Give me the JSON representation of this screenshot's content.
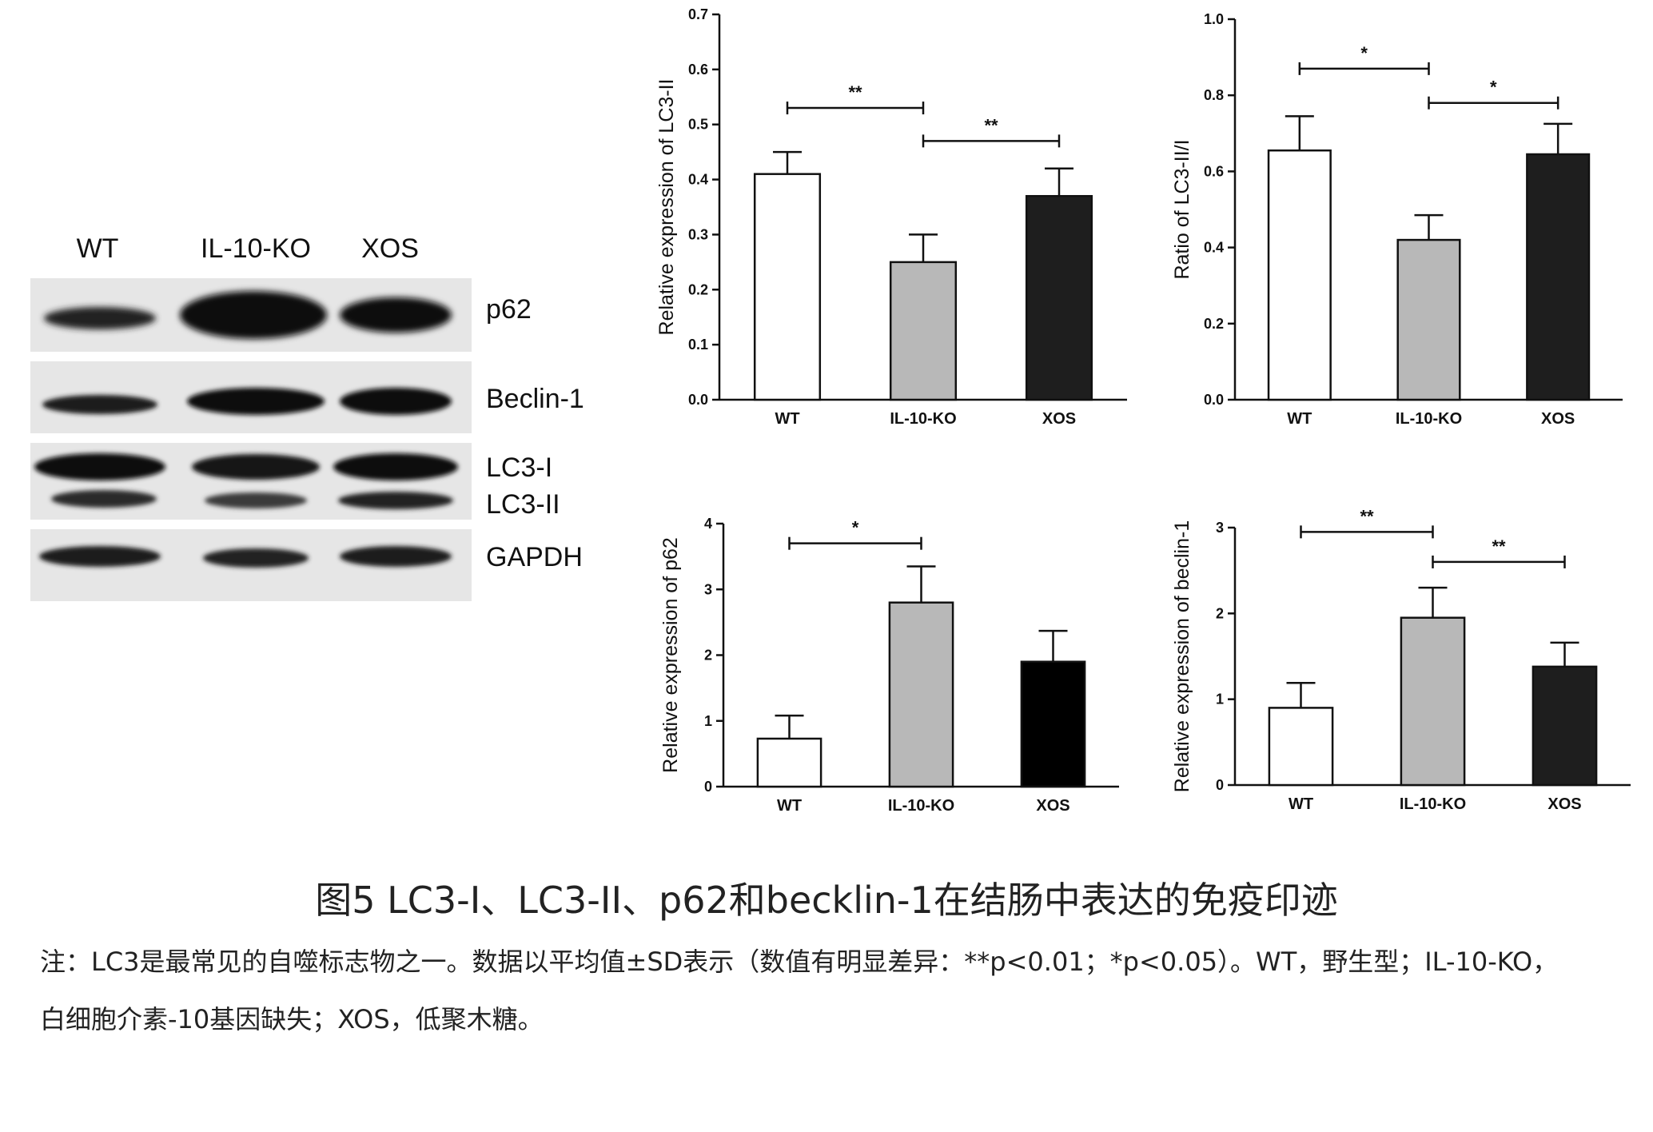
{
  "blot": {
    "lanes": [
      "WT",
      "IL-10-KO",
      "XOS"
    ],
    "bands": [
      "p62",
      "Beclin-1",
      "LC3-I",
      "LC3-II",
      "GAPDH"
    ]
  },
  "colors": {
    "wt": "#ffffff",
    "ko": "#b8b8b8",
    "xos": "#1e1e1e",
    "xos_dark": "#000000",
    "axis": "#111111"
  },
  "chart_data": [
    {
      "id": "lc3ii",
      "type": "bar",
      "categories": [
        "WT",
        "IL-10-KO",
        "XOS"
      ],
      "values": [
        0.41,
        0.25,
        0.37
      ],
      "errors": [
        0.04,
        0.05,
        0.05
      ],
      "ylabel": "Relative expression of LC3-II",
      "ylim": [
        0,
        0.7
      ],
      "yticks": [
        "0.0",
        "0.1",
        "0.2",
        "0.3",
        "0.4",
        "0.5",
        "0.6",
        "0.7"
      ],
      "tick_values": [
        0,
        0.1,
        0.2,
        0.3,
        0.4,
        0.5,
        0.6,
        0.7
      ],
      "fills": [
        "#ffffff",
        "#b8b8b8",
        "#1e1e1e"
      ],
      "significance": [
        {
          "from": 0,
          "to": 1,
          "y": 0.53,
          "label": "**"
        },
        {
          "from": 1,
          "to": 2,
          "y": 0.47,
          "label": "**"
        }
      ]
    },
    {
      "id": "ratio",
      "type": "bar",
      "categories": [
        "WT",
        "IL-10-KO",
        "XOS"
      ],
      "values": [
        0.655,
        0.42,
        0.645
      ],
      "errors": [
        0.09,
        0.065,
        0.08
      ],
      "ylabel": "Ratio of LC3-II/I",
      "ylim": [
        0,
        1.0
      ],
      "yticks": [
        "0.0",
        "0.2",
        "0.4",
        "0.6",
        "0.8",
        "1.0"
      ],
      "tick_values": [
        0,
        0.2,
        0.4,
        0.6,
        0.8,
        1.0
      ],
      "fills": [
        "#ffffff",
        "#b8b8b8",
        "#1e1e1e"
      ],
      "significance": [
        {
          "from": 0,
          "to": 1,
          "y": 0.87,
          "label": "*"
        },
        {
          "from": 1,
          "to": 2,
          "y": 0.78,
          "label": "*"
        }
      ]
    },
    {
      "id": "p62",
      "type": "bar",
      "categories": [
        "WT",
        "IL-10-KO",
        "XOS"
      ],
      "values": [
        0.73,
        2.8,
        1.9
      ],
      "errors": [
        0.35,
        0.55,
        0.47
      ],
      "ylabel": "Relative expression of p62",
      "ylim": [
        0,
        4
      ],
      "yticks": [
        "0",
        "1",
        "2",
        "3",
        "4"
      ],
      "tick_values": [
        0,
        1,
        2,
        3,
        4
      ],
      "fills": [
        "#ffffff",
        "#b8b8b8",
        "#000000"
      ],
      "significance": [
        {
          "from": 0,
          "to": 1,
          "y": 3.7,
          "label": "*"
        }
      ]
    },
    {
      "id": "beclin",
      "type": "bar",
      "categories": [
        "WT",
        "IL-10-KO",
        "XOS"
      ],
      "values": [
        0.9,
        1.95,
        1.38
      ],
      "errors": [
        0.29,
        0.35,
        0.28
      ],
      "ylabel": "Relative expression of beclin-1",
      "ylim": [
        0,
        3
      ],
      "yticks": [
        "0",
        "1",
        "2",
        "3"
      ],
      "tick_values": [
        0,
        1,
        2,
        3
      ],
      "fills": [
        "#ffffff",
        "#b8b8b8",
        "#1e1e1e"
      ],
      "significance": [
        {
          "from": 0,
          "to": 1,
          "y": 2.95,
          "label": "**"
        },
        {
          "from": 1,
          "to": 2,
          "y": 2.6,
          "label": "**"
        }
      ]
    }
  ],
  "caption": {
    "title": "图5 LC3-I、LC3-II、p62和becklin-1在结肠中表达的免疫印迹",
    "note_line_1": "注：LC3是最常见的自噬标志物之一。数据以平均值±SD表示（数值有明显差异：**p<0.01；*p<0.05）。WT，野生型；IL-10-KO，",
    "note_line_2": "白细胞介素-10基因缺失；XOS，低聚木糖。"
  }
}
